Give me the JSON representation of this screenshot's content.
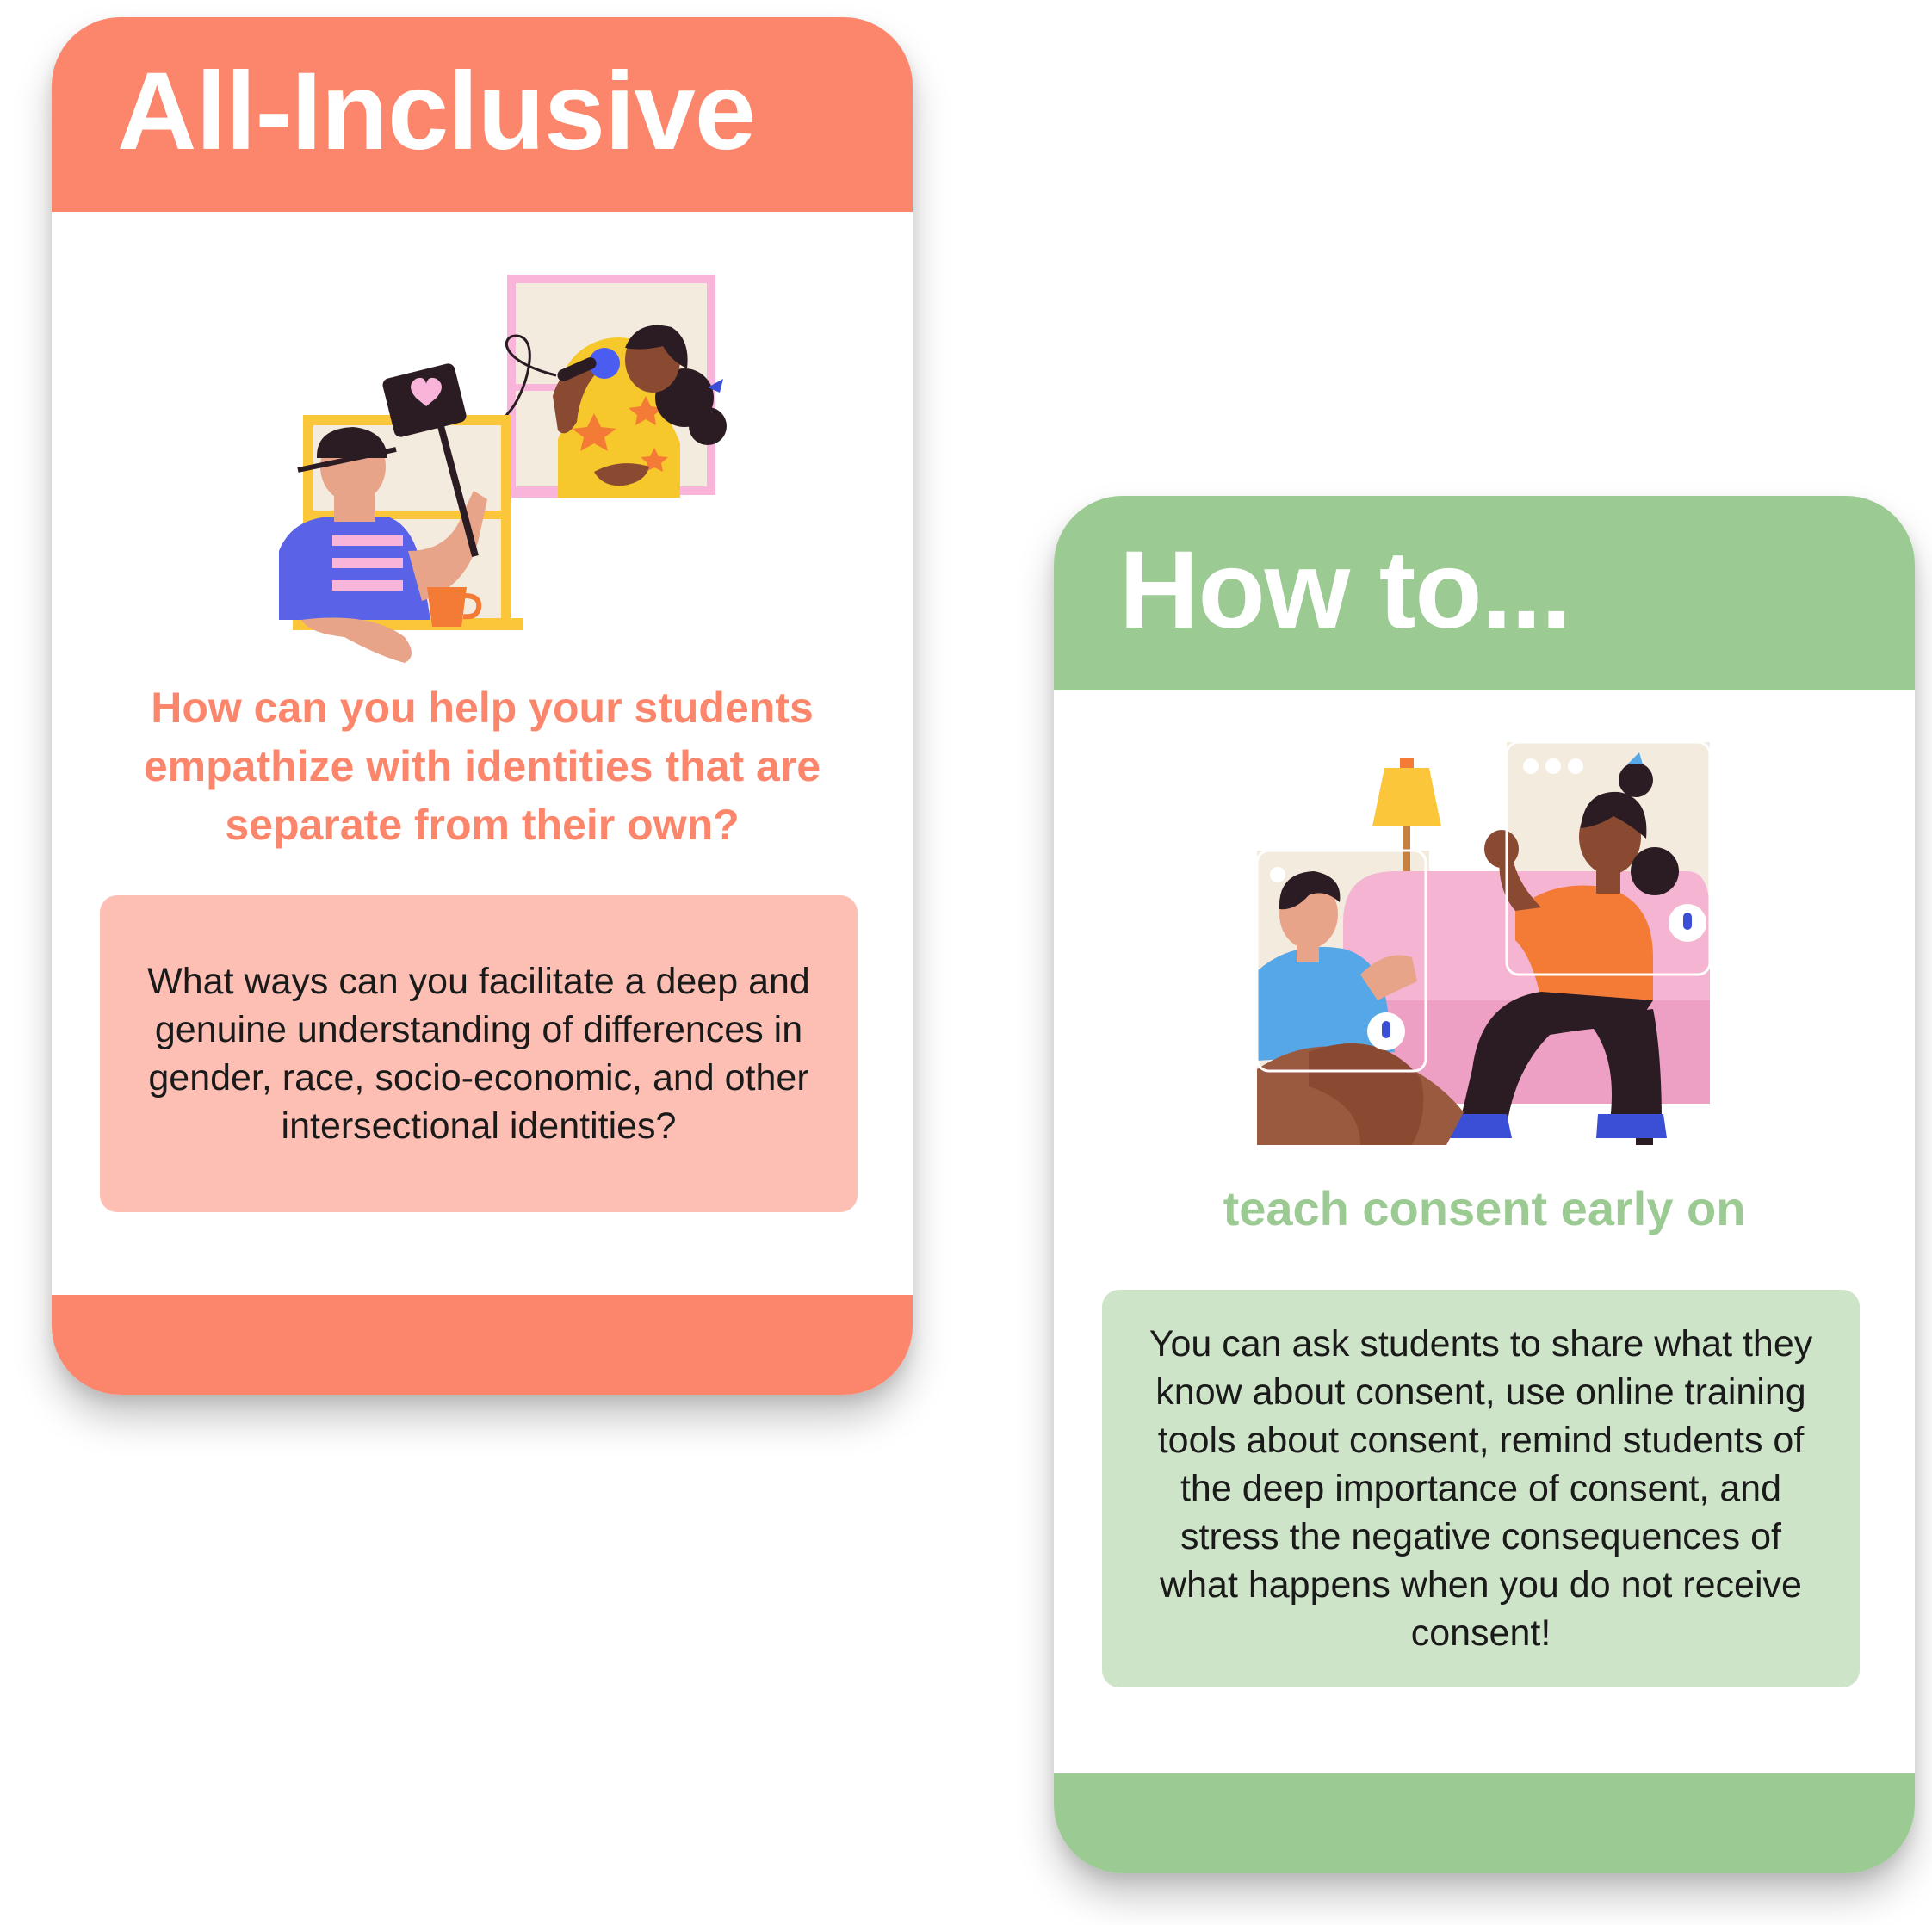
{
  "cards": [
    {
      "title": "All-Inclusive",
      "question": "How can you help your students empathize with identities that are separate from their own?",
      "answer": "What ways can you facilitate a deep and genuine understanding of differences in gender, race, socio-economic, and other intersectional identities?",
      "illustration_icon": "window-neighbors-illustration",
      "accent_color": "#fc866c",
      "box_color": "#fdbfb3"
    },
    {
      "title": "How to...",
      "question": "teach consent early on",
      "answer": "You can ask students to share what they know about consent, use online training tools about consent, remind students of the deep importance of consent, and stress the negative consequences of what happens when you do not receive consent!",
      "illustration_icon": "video-call-couch-illustration",
      "accent_color": "#9bca93",
      "box_color": "#cde4c8"
    }
  ]
}
